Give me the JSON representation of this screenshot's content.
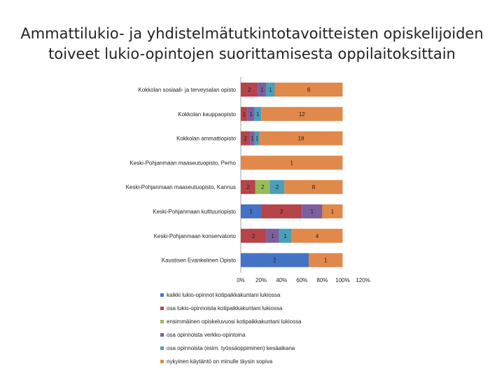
{
  "title_lines": [
    "Ammattilukio- ja yhdistelmätutkintotavoitteisten opiskelijoiden",
    "toiveet lukio-opintojen suorittamisesta oppilaitoksittain"
  ],
  "colors": {
    "series": [
      "#4472c4",
      "#b64449",
      "#9bbb59",
      "#7d5f9e",
      "#4a9fba",
      "#e1894a"
    ],
    "label": "#222222",
    "axis": "#888888"
  },
  "chart_data": {
    "type": "bar",
    "orientation": "horizontal",
    "stacked": "percent",
    "categories": [
      "Kokkolan sosiaali- ja terveysalan opisto",
      "Kokkolan kauppaopisto",
      "Kokkolan ammattiopisto",
      "Keski-Pohjanmaan maaseutuopisto, Perho",
      "Keski-Pohjanmaan maaseutuopisto, Kannus",
      "Keski-Pohjanmaan kulttuuriopisto",
      "Keski-Pohjanmaan konservatorio",
      "Kaustisen Evankelinen Opisto"
    ],
    "series": [
      {
        "name": "kaikki lukio-opinnot kotipaikkakuntani lukiossa",
        "values": [
          0,
          0,
          0,
          0,
          0,
          1,
          0,
          2
        ]
      },
      {
        "name": "osa lukio-opinnoista kotipaikkakuntani lukiossa",
        "values": [
          2,
          1,
          2,
          0,
          2,
          2,
          2,
          0
        ]
      },
      {
        "name": "ensimmäinen opiskeluvuosi kotipaikkakuntani lukiossa",
        "values": [
          0,
          0,
          0,
          0,
          2,
          0,
          0,
          0
        ]
      },
      {
        "name": "osa opinnoista verkko-opintoina",
        "values": [
          1,
          1,
          1,
          0,
          0,
          1,
          1,
          0
        ]
      },
      {
        "name": "osa opinnoista (esim. työssäoppiminen) kesäaikana",
        "values": [
          1,
          1,
          1,
          0,
          2,
          0,
          1,
          0
        ]
      },
      {
        "name": "nykyinen käytäntö on minulle täysin sopiva",
        "values": [
          8,
          12,
          18,
          1,
          8,
          1,
          4,
          1
        ]
      }
    ],
    "x_ticks": [
      "0%",
      "20%",
      "40%",
      "60%",
      "80%",
      "100%",
      "120%"
    ],
    "xlim": [
      0,
      120
    ],
    "title": "Ammattilukio- ja yhdistelmätutkintotavoitteisten opiskelijoiden toiveet lukio-opintojen suorittamisesta oppilaitoksittain",
    "xlabel": "",
    "ylabel": "",
    "legend_position": "bottom"
  }
}
